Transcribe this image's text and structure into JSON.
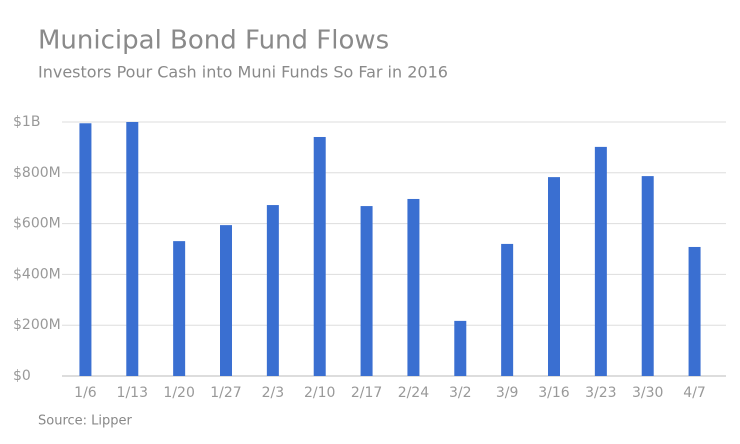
{
  "chart_data": {
    "type": "bar",
    "title": "Municipal Bond Fund Flows",
    "subtitle": "Investors Pour Cash into Muni Funds So Far in 2016",
    "source": "Source: Lipper",
    "categories": [
      "1/6",
      "1/13",
      "1/20",
      "1/27",
      "2/3",
      "2/10",
      "2/17",
      "2/24",
      "3/2",
      "3/9",
      "3/16",
      "3/23",
      "3/30",
      "4/7"
    ],
    "values": [
      995000000,
      1000000000,
      531000000,
      594000000,
      673000000,
      941000000,
      669000000,
      697000000,
      217000000,
      520000000,
      783000000,
      902000000,
      787000000,
      508000000
    ],
    "color": "#3a6fd1",
    "ylim": [
      0,
      1000000000
    ],
    "yticks": [
      {
        "value": 0,
        "label": "$0"
      },
      {
        "value": 200000000,
        "label": "$200M"
      },
      {
        "value": 400000000,
        "label": "$400M"
      },
      {
        "value": 600000000,
        "label": "$600M"
      },
      {
        "value": 800000000,
        "label": "$800M"
      },
      {
        "value": 1000000000,
        "label": "$1B"
      }
    ],
    "grid": true
  }
}
